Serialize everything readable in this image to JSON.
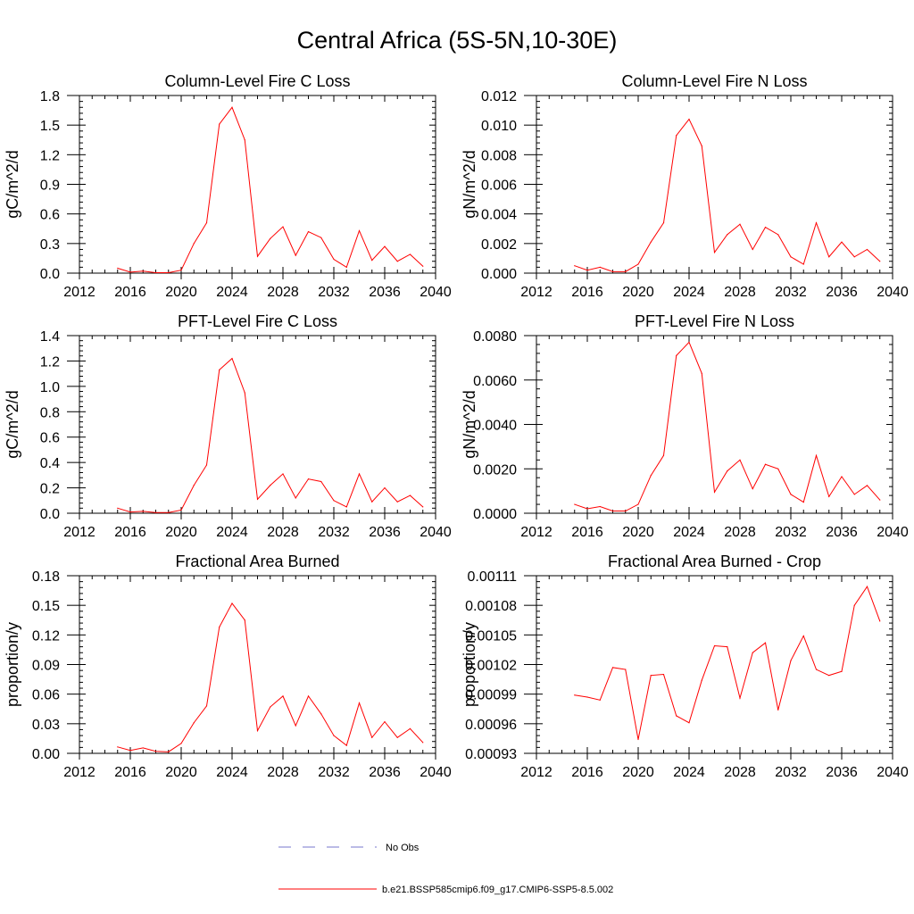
{
  "title": "Central Africa (5S-5N,10-30E)",
  "legend": {
    "items": [
      {
        "label": "No Obs",
        "color": "#7777cc",
        "style": "dashed"
      },
      {
        "label": "b.e21.BSSP585cmip6.f09_g17.CMIP6-SSP5-8.5.002",
        "color": "#ff0000",
        "style": "solid"
      }
    ]
  },
  "colors": {
    "series": "#ff0000",
    "obs": "#7777cc",
    "axis": "#000000"
  },
  "chart_data": [
    {
      "type": "line",
      "title": "Column-Level Fire C Loss",
      "ylabel": "gC/m^2/d",
      "xlim": [
        2012,
        2040
      ],
      "ylim": [
        0,
        1.8
      ],
      "xticks": [
        2012,
        2016,
        2020,
        2024,
        2028,
        2032,
        2036,
        2040
      ],
      "xtick_labels": [
        "2012",
        "2016",
        "2020",
        "2024",
        "2028",
        "2032",
        "2036",
        "2040"
      ],
      "yticks": [
        0,
        0.3,
        0.6,
        0.9,
        1.2,
        1.5,
        1.8
      ],
      "ytick_labels": [
        "0.0",
        "0.3",
        "0.6",
        "0.9",
        "1.2",
        "1.5",
        "1.8"
      ],
      "x": [
        2015,
        2016,
        2017,
        2018,
        2019,
        2020,
        2021,
        2022,
        2023,
        2024,
        2025,
        2026,
        2027,
        2028,
        2029,
        2030,
        2031,
        2032,
        2033,
        2034,
        2035,
        2036,
        2037,
        2038,
        2039
      ],
      "series": [
        {
          "name": "b.e21.BSSP585cmip6.f09_g17.CMIP6-SSP5-8.5.002",
          "values": [
            0.05,
            0.01,
            0.02,
            0.005,
            0.005,
            0.03,
            0.3,
            0.51,
            1.51,
            1.68,
            1.35,
            0.17,
            0.35,
            0.47,
            0.18,
            0.42,
            0.36,
            0.14,
            0.06,
            0.43,
            0.13,
            0.27,
            0.12,
            0.19,
            0.07
          ]
        }
      ]
    },
    {
      "type": "line",
      "title": "Column-Level Fire N Loss",
      "ylabel": "gN/m^2/d",
      "xlim": [
        2012,
        2040
      ],
      "ylim": [
        0,
        0.012
      ],
      "xticks": [
        2012,
        2016,
        2020,
        2024,
        2028,
        2032,
        2036,
        2040
      ],
      "xtick_labels": [
        "2012",
        "2016",
        "2020",
        "2024",
        "2028",
        "2032",
        "2036",
        "2040"
      ],
      "yticks": [
        0,
        0.002,
        0.004,
        0.006,
        0.008,
        0.01,
        0.012
      ],
      "ytick_labels": [
        "0.000",
        "0.002",
        "0.004",
        "0.006",
        "0.008",
        "0.010",
        "0.012"
      ],
      "x": [
        2015,
        2016,
        2017,
        2018,
        2019,
        2020,
        2021,
        2022,
        2023,
        2024,
        2025,
        2026,
        2027,
        2028,
        2029,
        2030,
        2031,
        2032,
        2033,
        2034,
        2035,
        2036,
        2037,
        2038,
        2039
      ],
      "series": [
        {
          "name": "b.e21.BSSP585cmip6.f09_g17.CMIP6-SSP5-8.5.002",
          "values": [
            0.0005,
            0.0002,
            0.0004,
            0.0001,
            0.0001,
            0.0006,
            0.0021,
            0.0034,
            0.0093,
            0.0104,
            0.0086,
            0.0014,
            0.0026,
            0.0033,
            0.0016,
            0.0031,
            0.0026,
            0.0011,
            0.0006,
            0.0034,
            0.0011,
            0.0021,
            0.0011,
            0.0016,
            0.0008
          ]
        }
      ]
    },
    {
      "type": "line",
      "title": "PFT-Level Fire C Loss",
      "ylabel": "gC/m^2/d",
      "xlim": [
        2012,
        2040
      ],
      "ylim": [
        0,
        1.4
      ],
      "xticks": [
        2012,
        2016,
        2020,
        2024,
        2028,
        2032,
        2036,
        2040
      ],
      "xtick_labels": [
        "2012",
        "2016",
        "2020",
        "2024",
        "2028",
        "2032",
        "2036",
        "2040"
      ],
      "yticks": [
        0,
        0.2,
        0.4,
        0.6,
        0.8,
        1.0,
        1.2,
        1.4
      ],
      "ytick_labels": [
        "0.0",
        "0.2",
        "0.4",
        "0.6",
        "0.8",
        "1.0",
        "1.2",
        "1.4"
      ],
      "x": [
        2015,
        2016,
        2017,
        2018,
        2019,
        2020,
        2021,
        2022,
        2023,
        2024,
        2025,
        2026,
        2027,
        2028,
        2029,
        2030,
        2031,
        2032,
        2033,
        2034,
        2035,
        2036,
        2037,
        2038,
        2039
      ],
      "series": [
        {
          "name": "b.e21.BSSP585cmip6.f09_g17.CMIP6-SSP5-8.5.002",
          "values": [
            0.04,
            0.01,
            0.015,
            0.005,
            0.005,
            0.025,
            0.22,
            0.38,
            1.13,
            1.22,
            0.95,
            0.11,
            0.22,
            0.31,
            0.12,
            0.27,
            0.25,
            0.1,
            0.05,
            0.31,
            0.09,
            0.2,
            0.09,
            0.14,
            0.05
          ]
        }
      ]
    },
    {
      "type": "line",
      "title": "PFT-Level Fire N Loss",
      "ylabel": "gN/m^2/d",
      "xlim": [
        2012,
        2040
      ],
      "ylim": [
        0,
        0.008
      ],
      "xticks": [
        2012,
        2016,
        2020,
        2024,
        2028,
        2032,
        2036,
        2040
      ],
      "xtick_labels": [
        "2012",
        "2016",
        "2020",
        "2024",
        "2028",
        "2032",
        "2036",
        "2040"
      ],
      "yticks": [
        0,
        0.002,
        0.004,
        0.006,
        0.008
      ],
      "ytick_labels": [
        "0.0000",
        "0.0020",
        "0.0040",
        "0.0060",
        "0.0080"
      ],
      "x": [
        2015,
        2016,
        2017,
        2018,
        2019,
        2020,
        2021,
        2022,
        2023,
        2024,
        2025,
        2026,
        2027,
        2028,
        2029,
        2030,
        2031,
        2032,
        2033,
        2034,
        2035,
        2036,
        2037,
        2038,
        2039
      ],
      "series": [
        {
          "name": "b.e21.BSSP585cmip6.f09_g17.CMIP6-SSP5-8.5.002",
          "values": [
            0.0004,
            0.0002,
            0.0003,
            0.0001,
            0.0001,
            0.0004,
            0.0017,
            0.0026,
            0.0071,
            0.0077,
            0.0063,
            0.00095,
            0.0019,
            0.0024,
            0.0011,
            0.0022,
            0.002,
            0.00085,
            0.0005,
            0.0026,
            0.00075,
            0.00165,
            0.00085,
            0.00125,
            0.0006
          ]
        }
      ]
    },
    {
      "type": "line",
      "title": "Fractional Area Burned",
      "ylabel": "proportion/y",
      "xlim": [
        2012,
        2040
      ],
      "ylim": [
        0,
        0.18
      ],
      "xticks": [
        2012,
        2016,
        2020,
        2024,
        2028,
        2032,
        2036,
        2040
      ],
      "xtick_labels": [
        "2012",
        "2016",
        "2020",
        "2024",
        "2028",
        "2032",
        "2036",
        "2040"
      ],
      "yticks": [
        0,
        0.03,
        0.06,
        0.09,
        0.12,
        0.15,
        0.18
      ],
      "ytick_labels": [
        "0.00",
        "0.03",
        "0.06",
        "0.09",
        "0.12",
        "0.15",
        "0.18"
      ],
      "x": [
        2015,
        2016,
        2017,
        2018,
        2019,
        2020,
        2021,
        2022,
        2023,
        2024,
        2025,
        2026,
        2027,
        2028,
        2029,
        2030,
        2031,
        2032,
        2033,
        2034,
        2035,
        2036,
        2037,
        2038,
        2039
      ],
      "series": [
        {
          "name": "b.e21.BSSP585cmip6.f09_g17.CMIP6-SSP5-8.5.002",
          "values": [
            0.0065,
            0.003,
            0.0055,
            0.002,
            0.0015,
            0.01,
            0.031,
            0.048,
            0.128,
            0.152,
            0.135,
            0.023,
            0.047,
            0.058,
            0.028,
            0.058,
            0.04,
            0.018,
            0.008,
            0.051,
            0.016,
            0.032,
            0.016,
            0.025,
            0.011
          ]
        }
      ]
    },
    {
      "type": "line",
      "title": "Fractional Area Burned - Crop",
      "ylabel": "proportion/y",
      "xlim": [
        2012,
        2040
      ],
      "ylim": [
        0.00093,
        0.00111
      ],
      "xticks": [
        2012,
        2016,
        2020,
        2024,
        2028,
        2032,
        2036,
        2040
      ],
      "xtick_labels": [
        "2012",
        "2016",
        "2020",
        "2024",
        "2028",
        "2032",
        "2036",
        "2040"
      ],
      "yticks": [
        0.00093,
        0.00096,
        0.00099,
        0.00102,
        0.00105,
        0.00108,
        0.00111
      ],
      "ytick_labels": [
        "0.00093",
        "0.00096",
        "0.00099",
        "0.00102",
        "0.00105",
        "0.00108",
        "0.00111"
      ],
      "x": [
        2015,
        2016,
        2017,
        2018,
        2019,
        2020,
        2021,
        2022,
        2023,
        2024,
        2025,
        2026,
        2027,
        2028,
        2029,
        2030,
        2031,
        2032,
        2033,
        2034,
        2035,
        2036,
        2037,
        2038,
        2039
      ],
      "series": [
        {
          "name": "b.e21.BSSP585cmip6.f09_g17.CMIP6-SSP5-8.5.002",
          "values": [
            0.000989,
            0.000987,
            0.000984,
            0.001017,
            0.001015,
            0.000944,
            0.001009,
            0.00101,
            0.000968,
            0.000961,
            0.001004,
            0.001039,
            0.001038,
            0.000986,
            0.001032,
            0.001042,
            0.000974,
            0.001024,
            0.001049,
            0.001015,
            0.001009,
            0.001013,
            0.00108,
            0.001099,
            0.001064
          ]
        }
      ]
    }
  ]
}
